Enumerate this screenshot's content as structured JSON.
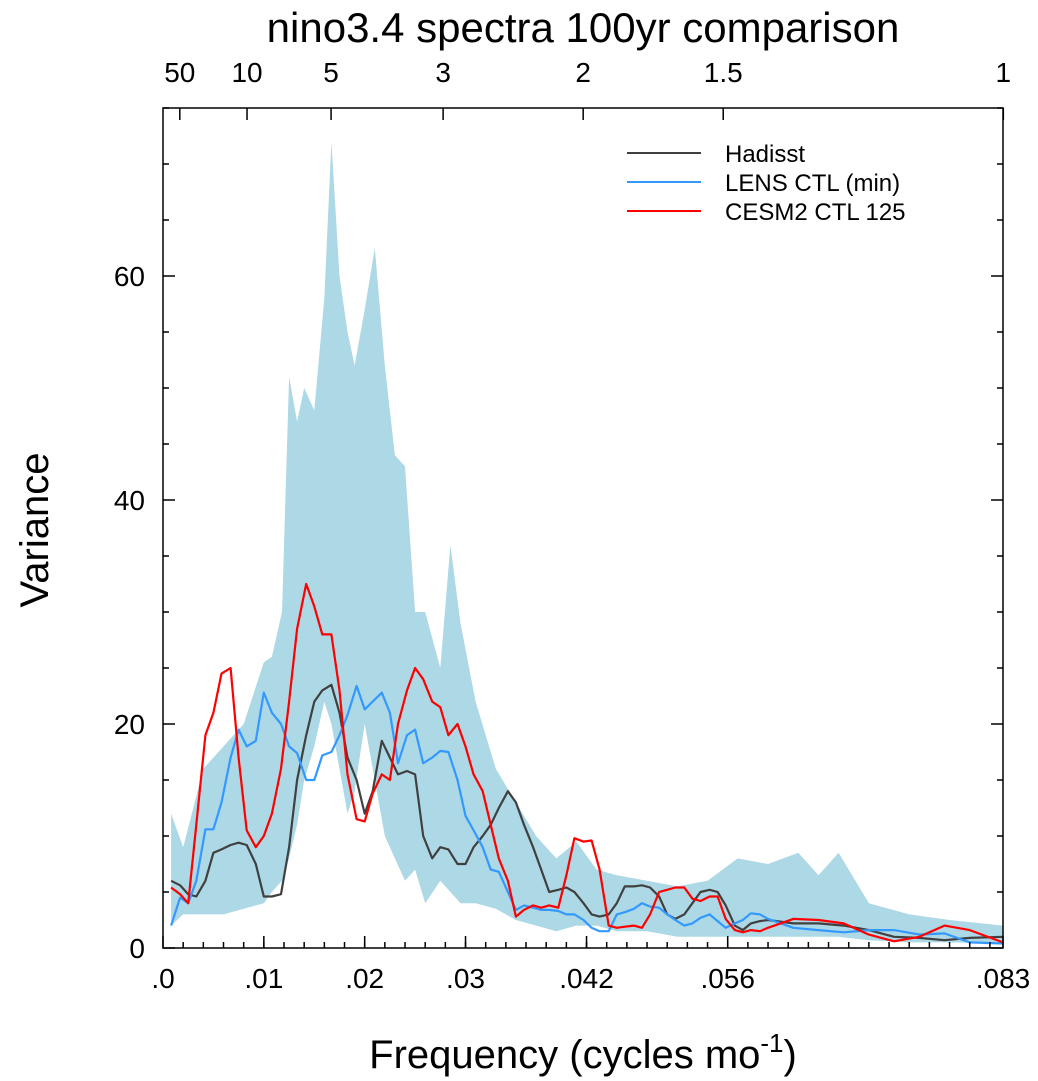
{
  "chart_data": {
    "type": "line",
    "title": "nino3.4 spectra 100yr comparison",
    "xlabel_main": "Frequency (cycles mo",
    "xlabel_sup": "-1",
    "xlabel_close": ")",
    "ylabel": "Variance",
    "xlim": [
      0,
      0.0833
    ],
    "ylim": [
      0,
      75
    ],
    "bottom_ticks": [
      {
        "value": 0.0,
        "label": ".0"
      },
      {
        "value": 0.01,
        "label": ".01"
      },
      {
        "value": 0.02,
        "label": ".02"
      },
      {
        "value": 0.03,
        "label": ".03"
      },
      {
        "value": 0.042,
        "label": ".042"
      },
      {
        "value": 0.056,
        "label": ".056"
      },
      {
        "value": 0.0833,
        "label": ".083"
      }
    ],
    "top_ticks": [
      {
        "period_years": 50,
        "label": "50"
      },
      {
        "period_years": 10,
        "label": "10"
      },
      {
        "period_years": 5,
        "label": "5"
      },
      {
        "period_years": 3,
        "label": "3"
      },
      {
        "period_years": 2,
        "label": "2"
      },
      {
        "period_years": 1.5,
        "label": "1.5"
      },
      {
        "period_years": 1,
        "label": "1"
      }
    ],
    "y_ticks": [
      {
        "value": 0,
        "label": "0"
      },
      {
        "value": 20,
        "label": "20"
      },
      {
        "value": 40,
        "label": "40"
      },
      {
        "value": 60,
        "label": "60"
      }
    ],
    "legend_position": "top-right",
    "band": {
      "color": "#add8e6",
      "x": [
        0.0008,
        0.002,
        0.004,
        0.006,
        0.008,
        0.01,
        0.0108,
        0.0118,
        0.0125,
        0.0133,
        0.014,
        0.015,
        0.016,
        0.0167,
        0.0175,
        0.0183,
        0.019,
        0.02,
        0.021,
        0.022,
        0.023,
        0.024,
        0.025,
        0.026,
        0.0275,
        0.0285,
        0.0295,
        0.031,
        0.033,
        0.035,
        0.037,
        0.039,
        0.041,
        0.043,
        0.045,
        0.048,
        0.051,
        0.054,
        0.057,
        0.06,
        0.063,
        0.065,
        0.067,
        0.07,
        0.074,
        0.078,
        0.0833
      ],
      "upper": [
        12,
        9,
        16,
        18,
        20,
        25.5,
        26,
        30,
        51,
        47,
        50,
        48,
        58,
        72,
        60,
        55,
        52,
        57,
        62.5,
        52,
        44,
        43,
        30,
        30,
        25,
        36,
        29,
        22,
        16,
        13,
        10,
        8,
        9.5,
        7,
        6.5,
        6,
        5.5,
        6,
        8,
        7.5,
        8.5,
        6.5,
        8.5,
        4,
        3,
        2.5,
        2
      ],
      "lower": [
        2,
        3,
        3,
        3,
        3.5,
        4,
        5,
        6,
        8,
        11,
        15,
        18,
        22,
        20,
        16,
        12,
        14,
        20,
        15,
        10,
        8,
        6,
        7,
        4,
        6,
        5,
        4,
        4,
        3.5,
        2.5,
        2,
        1.5,
        2,
        2,
        1.5,
        1.5,
        1,
        1,
        1,
        1,
        1,
        1,
        1,
        0.7,
        0.5,
        0.5,
        0.4
      ]
    },
    "series": [
      {
        "name": "Hadisst",
        "color": "#404040",
        "x": [
          0.0008,
          0.0017,
          0.0025,
          0.0033,
          0.0042,
          0.005,
          0.0058,
          0.0067,
          0.0075,
          0.0083,
          0.0092,
          0.01,
          0.0108,
          0.0117,
          0.0125,
          0.0133,
          0.0142,
          0.015,
          0.0158,
          0.0167,
          0.0175,
          0.0183,
          0.0192,
          0.02,
          0.0208,
          0.0217,
          0.0225,
          0.0233,
          0.0242,
          0.025,
          0.0258,
          0.0267,
          0.0275,
          0.0283,
          0.0292,
          0.03,
          0.0308,
          0.0317,
          0.0325,
          0.0333,
          0.0342,
          0.035,
          0.0358,
          0.0367,
          0.0375,
          0.0383,
          0.0392,
          0.04,
          0.0408,
          0.0417,
          0.0425,
          0.0433,
          0.0442,
          0.045,
          0.0458,
          0.0467,
          0.0475,
          0.0483,
          0.0492,
          0.05,
          0.0508,
          0.0517,
          0.0525,
          0.0533,
          0.0542,
          0.055,
          0.0558,
          0.0567,
          0.0575,
          0.0583,
          0.0592,
          0.06,
          0.0625,
          0.065,
          0.0675,
          0.07,
          0.0725,
          0.075,
          0.0775,
          0.08,
          0.0833
        ],
        "y": [
          6,
          5.6,
          4.8,
          4.6,
          6,
          8.5,
          8.8,
          9.2,
          9.4,
          9.2,
          7.5,
          4.6,
          4.6,
          4.8,
          9,
          15,
          19,
          22,
          23,
          23.5,
          21,
          17,
          15,
          12,
          14,
          18.5,
          17,
          15.5,
          15.8,
          15.5,
          10,
          8,
          9,
          8.8,
          7.5,
          7.5,
          9,
          10,
          11,
          12.5,
          14,
          13,
          11,
          9,
          7,
          5,
          5.2,
          5.4,
          5,
          4,
          3,
          2.8,
          3,
          4,
          5.5,
          5.5,
          5.6,
          5.4,
          4.6,
          3,
          2.6,
          3,
          4,
          5,
          5.2,
          5,
          3.8,
          2,
          1.6,
          2.2,
          2.4,
          2.5,
          2.2,
          2.2,
          2,
          1.6,
          1,
          0.9,
          0.7,
          0.9,
          1
        ]
      },
      {
        "name": "LENS CTL (min)",
        "color": "#3399ff",
        "x": [
          0.0008,
          0.0017,
          0.0025,
          0.0033,
          0.0042,
          0.005,
          0.0058,
          0.0067,
          0.0075,
          0.0083,
          0.0092,
          0.01,
          0.0108,
          0.0117,
          0.0125,
          0.0133,
          0.0142,
          0.015,
          0.0158,
          0.0167,
          0.0175,
          0.0183,
          0.0192,
          0.02,
          0.0208,
          0.0217,
          0.0225,
          0.0233,
          0.0242,
          0.025,
          0.0258,
          0.0267,
          0.0275,
          0.0283,
          0.0292,
          0.03,
          0.0308,
          0.0317,
          0.0325,
          0.0333,
          0.0342,
          0.035,
          0.0358,
          0.0367,
          0.0375,
          0.0383,
          0.0392,
          0.04,
          0.0408,
          0.0417,
          0.0425,
          0.0433,
          0.0442,
          0.045,
          0.0458,
          0.0467,
          0.0475,
          0.0483,
          0.0492,
          0.05,
          0.0508,
          0.0517,
          0.0525,
          0.0533,
          0.0542,
          0.055,
          0.0558,
          0.0567,
          0.0575,
          0.0583,
          0.0592,
          0.06,
          0.0625,
          0.065,
          0.0675,
          0.07,
          0.0725,
          0.075,
          0.0775,
          0.08,
          0.0833
        ],
        "y": [
          2,
          4.5,
          4,
          6,
          10.6,
          10.6,
          13,
          17,
          19.5,
          18,
          18.5,
          22.8,
          21,
          20,
          18,
          17.4,
          15,
          15,
          17.2,
          17.5,
          19,
          20.8,
          23.4,
          21.3,
          22,
          22.8,
          21,
          16.5,
          19,
          19.5,
          16.5,
          17,
          17.6,
          17.5,
          15,
          11.8,
          10.5,
          9,
          7,
          6.8,
          5,
          3.4,
          3.8,
          3.6,
          3.4,
          3.4,
          3.3,
          3,
          3,
          2.5,
          1.8,
          1.5,
          1.5,
          3,
          3.2,
          3.5,
          4,
          3.7,
          3.6,
          3,
          2.5,
          2,
          2.2,
          2.7,
          3,
          2.4,
          1.8,
          2.2,
          2.5,
          3.1,
          3,
          2.6,
          1.8,
          1.6,
          1.4,
          1.6,
          1.6,
          1.2,
          1.3,
          0.5,
          0.4
        ]
      },
      {
        "name": "CESM2 CTL 125",
        "color": "#ff0000",
        "x": [
          0.0008,
          0.0017,
          0.0025,
          0.0033,
          0.0042,
          0.005,
          0.0058,
          0.0067,
          0.0075,
          0.0083,
          0.0092,
          0.01,
          0.0108,
          0.0117,
          0.0125,
          0.0133,
          0.0142,
          0.015,
          0.0158,
          0.0167,
          0.0175,
          0.0183,
          0.0192,
          0.02,
          0.0208,
          0.0217,
          0.0225,
          0.0233,
          0.0242,
          0.025,
          0.0258,
          0.0267,
          0.0275,
          0.0283,
          0.0292,
          0.03,
          0.0308,
          0.0317,
          0.0325,
          0.0333,
          0.0342,
          0.035,
          0.0358,
          0.0367,
          0.0375,
          0.0383,
          0.0392,
          0.04,
          0.0408,
          0.0417,
          0.0425,
          0.0433,
          0.0442,
          0.045,
          0.0458,
          0.0467,
          0.0475,
          0.0483,
          0.0492,
          0.05,
          0.0508,
          0.0517,
          0.0525,
          0.0533,
          0.0542,
          0.055,
          0.0558,
          0.0567,
          0.0575,
          0.0583,
          0.0592,
          0.06,
          0.0625,
          0.065,
          0.0675,
          0.07,
          0.0725,
          0.075,
          0.0775,
          0.08,
          0.0833
        ],
        "y": [
          5.4,
          4.8,
          4,
          11,
          19,
          21,
          24.5,
          25,
          17,
          10.5,
          9,
          10,
          12,
          16,
          22,
          28.5,
          32.5,
          30.5,
          28,
          28,
          23,
          15.5,
          11.5,
          11.3,
          13.8,
          15.5,
          15,
          20,
          23,
          25,
          24,
          22,
          21.5,
          19,
          20,
          18,
          15.5,
          14,
          11,
          8,
          6,
          2.8,
          3.4,
          3.8,
          3.6,
          3.8,
          3.6,
          6.5,
          9.8,
          9.5,
          9.6,
          7,
          2,
          1.8,
          1.9,
          2,
          1.8,
          3,
          5,
          5.2,
          5.4,
          5.4,
          4.4,
          4.2,
          4.6,
          4.6,
          2.6,
          1.6,
          1.4,
          1.6,
          1.5,
          1.8,
          2.6,
          2.5,
          2.2,
          1.2,
          0.6,
          1,
          2,
          1.6,
          0.5
        ]
      }
    ]
  }
}
